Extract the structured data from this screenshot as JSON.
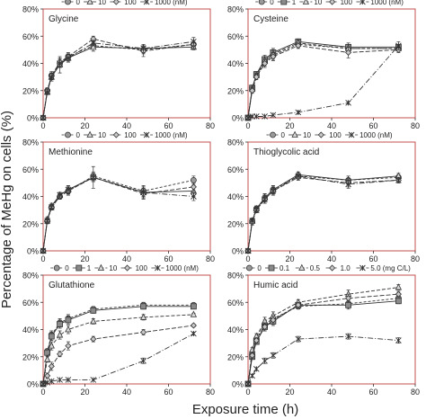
{
  "figure": {
    "ylabel": "Percentage of MeHg on cells (%)",
    "xlabel": "Exposure time (h)"
  },
  "chart_data": [
    {
      "type": "line",
      "title": "Glycine",
      "legend_labels": [
        "0",
        "10",
        "100",
        "1000 (nM)"
      ],
      "legend_placement": "top",
      "xlim": [
        0,
        80
      ],
      "ylim": [
        0,
        80
      ],
      "x_ticks": [
        "0",
        "20",
        "40",
        "60",
        "80"
      ],
      "y_ticks": [
        "0%",
        "20%",
        "40%",
        "60%",
        "80%"
      ],
      "x": [
        0,
        2,
        4,
        8,
        12,
        24,
        48,
        72
      ],
      "series": [
        {
          "name": "0",
          "marker": "circle",
          "dash": "3,2",
          "values": [
            0,
            20,
            31,
            40,
            45,
            53,
            50,
            54
          ],
          "err": [
            0,
            2,
            3,
            3,
            2,
            2,
            3,
            3
          ]
        },
        {
          "name": "10",
          "marker": "triangle",
          "dash": "none",
          "values": [
            0,
            19,
            30,
            39,
            44,
            52,
            51,
            52
          ],
          "err": [
            0,
            2,
            3,
            6,
            3,
            3,
            3,
            2
          ]
        },
        {
          "name": "100",
          "marker": "diamond",
          "dash": "5,2",
          "values": [
            0,
            20,
            31,
            41,
            45,
            58,
            49,
            54
          ],
          "err": [
            0,
            2,
            2,
            3,
            3,
            2,
            4,
            3
          ]
        },
        {
          "name": "1000 (nM)",
          "marker": "x",
          "dash": "6,2,1,2",
          "values": [
            0,
            19,
            30,
            40,
            44,
            55,
            51,
            56
          ],
          "err": [
            0,
            2,
            3,
            3,
            3,
            2,
            3,
            3
          ]
        }
      ]
    },
    {
      "type": "line",
      "title": "Cysteine",
      "legend_labels": [
        "0",
        "1",
        "10",
        "100",
        "1000 (nM)"
      ],
      "legend_placement": "top",
      "xlim": [
        0,
        80
      ],
      "ylim": [
        0,
        80
      ],
      "x_ticks": [
        "0",
        "20",
        "40",
        "60",
        "80"
      ],
      "y_ticks": [
        "0%",
        "20%",
        "40%",
        "60%",
        "80%"
      ],
      "x": [
        0,
        2,
        4,
        8,
        12,
        24,
        48,
        72
      ],
      "series": [
        {
          "name": "0",
          "marker": "circle",
          "dash": "3,2",
          "values": [
            0,
            22,
            31,
            41,
            46,
            54,
            51,
            51
          ],
          "err": [
            0,
            2,
            2,
            3,
            3,
            2,
            3,
            2
          ]
        },
        {
          "name": "1",
          "marker": "square",
          "dash": "none",
          "values": [
            0,
            22,
            32,
            43,
            48,
            56,
            52,
            52
          ],
          "err": [
            0,
            2,
            2,
            3,
            3,
            2,
            3,
            2
          ]
        },
        {
          "name": "10",
          "marker": "triangle",
          "dash": "4,2",
          "values": [
            0,
            21,
            31,
            42,
            47,
            55,
            51,
            51
          ],
          "err": [
            0,
            2,
            2,
            3,
            3,
            2,
            3,
            2
          ]
        },
        {
          "name": "100",
          "marker": "diamond",
          "dash": "5,2",
          "values": [
            0,
            20,
            30,
            40,
            45,
            53,
            48,
            50
          ],
          "err": [
            0,
            2,
            2,
            3,
            3,
            2,
            4,
            2
          ]
        },
        {
          "name": "1000 (nM)",
          "marker": "x",
          "dash": "6,2,1,2",
          "values": [
            0,
            1,
            1,
            1,
            2,
            4,
            11,
            53
          ],
          "err": [
            0,
            0,
            0,
            0,
            0,
            1,
            1,
            3
          ]
        }
      ]
    },
    {
      "type": "line",
      "title": "Methionine",
      "legend_labels": [
        "0",
        "10",
        "100",
        "1000 (nM)"
      ],
      "legend_placement": "top",
      "xlim": [
        0,
        80
      ],
      "ylim": [
        0,
        80
      ],
      "x_ticks": [
        "0",
        "20",
        "40",
        "60",
        "80"
      ],
      "y_ticks": [
        "0%",
        "20%",
        "40%",
        "60%",
        "80%"
      ],
      "x": [
        0,
        2,
        4,
        8,
        12,
        24,
        48,
        72
      ],
      "series": [
        {
          "name": "0",
          "marker": "circle",
          "dash": "3,2",
          "values": [
            0,
            22,
            32,
            40,
            44,
            55,
            44,
            52
          ],
          "err": [
            0,
            2,
            2,
            2,
            3,
            3,
            4,
            3
          ]
        },
        {
          "name": "10",
          "marker": "triangle",
          "dash": "none",
          "values": [
            0,
            23,
            33,
            41,
            45,
            54,
            43,
            44
          ],
          "err": [
            0,
            2,
            2,
            2,
            3,
            8,
            4,
            4
          ]
        },
        {
          "name": "100",
          "marker": "diamond",
          "dash": "5,2",
          "values": [
            0,
            22,
            32,
            40,
            44,
            54,
            42,
            47
          ],
          "err": [
            0,
            2,
            2,
            2,
            3,
            3,
            4,
            3
          ]
        },
        {
          "name": "1000 (nM)",
          "marker": "x",
          "dash": "6,2,1,2",
          "values": [
            0,
            22,
            32,
            41,
            45,
            54,
            43,
            40
          ],
          "err": [
            0,
            2,
            2,
            2,
            3,
            3,
            4,
            3
          ]
        }
      ]
    },
    {
      "type": "line",
      "title": "Thioglycolic acid",
      "legend_labels": [
        "0",
        "10",
        "100",
        "1000 (nM)"
      ],
      "legend_placement": "top",
      "xlim": [
        0,
        80
      ],
      "ylim": [
        0,
        80
      ],
      "x_ticks": [
        "0",
        "20",
        "40",
        "60",
        "80"
      ],
      "y_ticks": [
        "0%",
        "20%",
        "40%",
        "60%",
        "80%"
      ],
      "x": [
        0,
        2,
        4,
        8,
        12,
        24,
        48,
        72
      ],
      "series": [
        {
          "name": "0",
          "marker": "circle",
          "dash": "3,2",
          "values": [
            0,
            22,
            31,
            39,
            45,
            55,
            52,
            54
          ],
          "err": [
            0,
            2,
            2,
            3,
            3,
            2,
            3,
            2
          ]
        },
        {
          "name": "10",
          "marker": "triangle",
          "dash": "none",
          "values": [
            0,
            22,
            31,
            39,
            45,
            56,
            52,
            55
          ],
          "err": [
            0,
            2,
            2,
            3,
            3,
            2,
            3,
            2
          ]
        },
        {
          "name": "100",
          "marker": "diamond",
          "dash": "5,2",
          "values": [
            0,
            21,
            30,
            38,
            44,
            54,
            50,
            52
          ],
          "err": [
            0,
            2,
            2,
            3,
            3,
            2,
            3,
            2
          ]
        },
        {
          "name": "1000 (nM)",
          "marker": "x",
          "dash": "6,2,1,2",
          "values": [
            0,
            22,
            30,
            38,
            44,
            55,
            49,
            52
          ],
          "err": [
            0,
            2,
            2,
            3,
            3,
            2,
            3,
            2
          ]
        }
      ]
    },
    {
      "type": "line",
      "title": "Glutathione",
      "legend_labels": [
        "0",
        "1",
        "10",
        "100",
        "1000 (nM)"
      ],
      "legend_placement": "top",
      "xlim": [
        0,
        80
      ],
      "ylim": [
        0,
        80
      ],
      "x_ticks": [
        "0",
        "20",
        "40",
        "60",
        "80"
      ],
      "y_ticks": [
        "0%",
        "20%",
        "40%",
        "60%",
        "80%"
      ],
      "x": [
        0,
        2,
        4,
        8,
        12,
        24,
        48,
        72
      ],
      "series": [
        {
          "name": "0",
          "marker": "circle",
          "dash": "3,2",
          "values": [
            0,
            24,
            36,
            45,
            48,
            55,
            58,
            58
          ],
          "err": [
            0,
            2,
            3,
            3,
            3,
            2,
            2,
            1
          ]
        },
        {
          "name": "1",
          "marker": "square",
          "dash": "none",
          "values": [
            0,
            23,
            35,
            44,
            47,
            54,
            57,
            57
          ],
          "err": [
            0,
            2,
            3,
            3,
            3,
            2,
            2,
            1
          ]
        },
        {
          "name": "10",
          "marker": "triangle",
          "dash": "4,2",
          "values": [
            0,
            18,
            28,
            36,
            40,
            46,
            49,
            51
          ],
          "err": [
            0,
            2,
            3,
            3,
            3,
            2,
            2,
            1
          ]
        },
        {
          "name": "100",
          "marker": "diamond",
          "dash": "5,2",
          "values": [
            0,
            6,
            13,
            22,
            28,
            33,
            38,
            43
          ],
          "err": [
            0,
            2,
            3,
            2,
            3,
            2,
            2,
            1
          ]
        },
        {
          "name": "1000 (nM)",
          "marker": "x",
          "dash": "6,2,1,2",
          "values": [
            0,
            1,
            2,
            3,
            3,
            3,
            17,
            37
          ],
          "err": [
            0,
            0,
            0,
            0,
            0,
            0,
            2,
            1
          ]
        }
      ]
    },
    {
      "type": "line",
      "title": "Humic acid",
      "legend_labels": [
        "0",
        "0.1",
        "0.5",
        "1.0",
        "5.0 (mg C/L)"
      ],
      "legend_placement": "top",
      "xlim": [
        0,
        80
      ],
      "ylim": [
        0,
        80
      ],
      "x_ticks": [
        "0",
        "20",
        "40",
        "60",
        "80"
      ],
      "y_ticks": [
        "0%",
        "20%",
        "40%",
        "60%",
        "80%"
      ],
      "x": [
        0,
        2,
        4,
        8,
        12,
        24,
        48,
        72
      ],
      "series": [
        {
          "name": "0",
          "marker": "circle",
          "dash": "3,2",
          "values": [
            0,
            22,
            33,
            44,
            48,
            57,
            59,
            63
          ],
          "err": [
            0,
            2,
            2,
            3,
            3,
            2,
            3,
            2
          ]
        },
        {
          "name": "0.1",
          "marker": "square",
          "dash": "none",
          "values": [
            0,
            20,
            31,
            42,
            46,
            58,
            58,
            61
          ],
          "err": [
            0,
            2,
            2,
            3,
            3,
            2,
            3,
            2
          ]
        },
        {
          "name": "0.5",
          "marker": "triangle",
          "dash": "4,2",
          "values": [
            0,
            25,
            35,
            46,
            50,
            60,
            66,
            71
          ],
          "err": [
            0,
            2,
            2,
            3,
            3,
            2,
            3,
            2
          ]
        },
        {
          "name": "1.0",
          "marker": "diamond",
          "dash": "5,2",
          "values": [
            0,
            21,
            32,
            42,
            47,
            58,
            63,
            66
          ],
          "err": [
            0,
            2,
            2,
            3,
            3,
            2,
            3,
            2
          ]
        },
        {
          "name": "5.0 (mg C/L)",
          "marker": "x",
          "dash": "6,2,1,2",
          "values": [
            0,
            6,
            11,
            17,
            21,
            33,
            35,
            32
          ],
          "err": [
            0,
            1,
            1,
            2,
            2,
            2,
            2,
            2
          ]
        }
      ]
    }
  ]
}
